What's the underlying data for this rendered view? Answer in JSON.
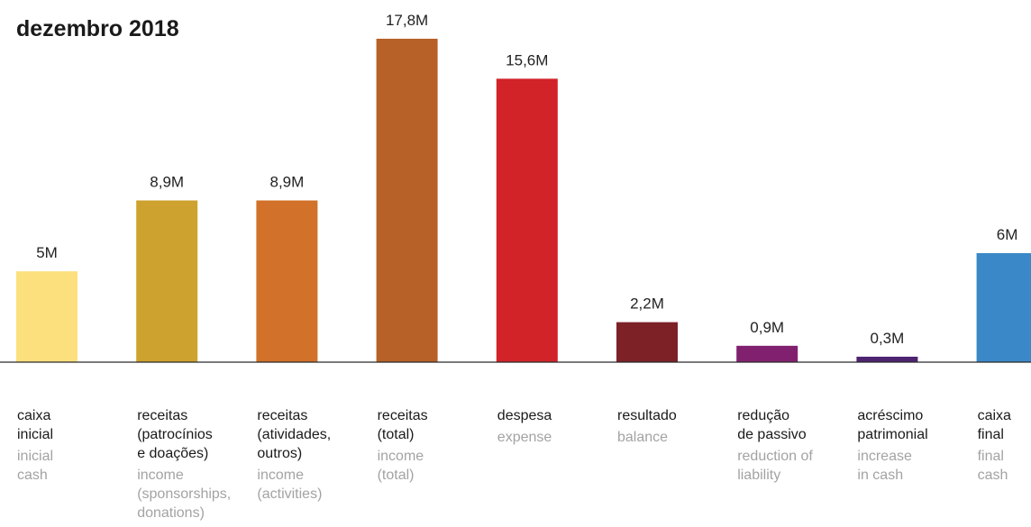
{
  "chart_data": {
    "type": "bar",
    "title": "dezembro 2018",
    "unit": "M",
    "ylim": [
      0,
      17.8
    ],
    "grid": false,
    "legend": "none",
    "categories": [
      {
        "label": [
          "caixa",
          "inicial"
        ],
        "sublabel": [
          "inicial",
          "cash"
        ]
      },
      {
        "label": [
          "receitas",
          "(patrocínios",
          "e doações)"
        ],
        "sublabel": [
          "income",
          "(sponsorships,",
          "donations)"
        ]
      },
      {
        "label": [
          "receitas",
          "(atividades,",
          "outros)"
        ],
        "sublabel": [
          "income",
          "(activities)"
        ]
      },
      {
        "label": [
          "receitas",
          "(total)"
        ],
        "sublabel": [
          "income",
          "(total)"
        ]
      },
      {
        "label": [
          "despesa"
        ],
        "sublabel": [
          "expense"
        ]
      },
      {
        "label": [
          "resultado"
        ],
        "sublabel": [
          "balance"
        ]
      },
      {
        "label": [
          "redução",
          "de passivo"
        ],
        "sublabel": [
          "reduction of",
          "liability"
        ]
      },
      {
        "label": [
          "acréscimo",
          "patrimonial"
        ],
        "sublabel": [
          "increase",
          "in cash"
        ]
      },
      {
        "label": [
          "caixa",
          "final"
        ],
        "sublabel": [
          "final",
          "cash"
        ]
      }
    ],
    "values": [
      5,
      8.9,
      8.9,
      17.8,
      15.6,
      2.2,
      0.9,
      0.3,
      6
    ],
    "value_labels": [
      "5M",
      "8,9M",
      "8,9M",
      "17,8M",
      "15,6M",
      "2,2M",
      "0,9M",
      "0,3M",
      "6M"
    ],
    "colors": [
      "#FCE07E",
      "#CDA22E",
      "#D2712A",
      "#B76128",
      "#D22328",
      "#7D2127",
      "#822070",
      "#4E2370",
      "#3A88C7"
    ]
  }
}
